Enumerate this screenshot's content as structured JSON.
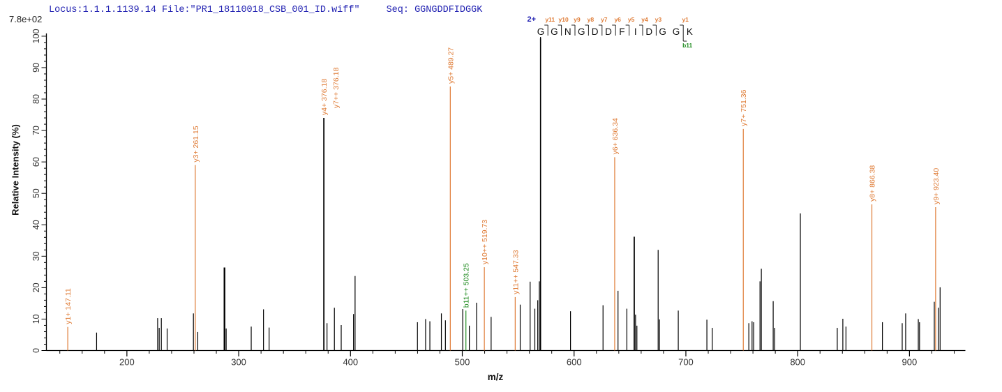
{
  "header": {
    "locus_file": "Locus:1.1.1.1139.14 File:\"PR1_18110018_CSB_001_ID.wiff\"",
    "seq_label": "Seq: GGNGDDFIDGGK"
  },
  "colors": {
    "black": "#000000",
    "orange": "#df7b35",
    "green": "#1f8b1f",
    "blue": "#2222b2",
    "axis": "#000000",
    "tick_label": "#333333",
    "residue": "#111111",
    "mark": "#222222"
  },
  "chart_data": {
    "type": "bar",
    "subtype": "ms2-stick-spectrum",
    "xlabel": "m/z",
    "ylabel": "Relative  Intensity (%)",
    "base_peak_label": "7.8e+02",
    "xlim": [
      128,
      950
    ],
    "ylim": [
      0,
      100
    ],
    "x_major_ticks": [
      200,
      300,
      400,
      500,
      600,
      700,
      800,
      900
    ],
    "x_minor_tick_step": 20,
    "x_minor_tick_range": [
      140,
      940
    ],
    "y_major_tick_step": 10,
    "y_minor_tick_step": 2,
    "sequence_annotation": {
      "charge": "2+",
      "residues": [
        "G",
        "G",
        "N",
        "G",
        "D",
        "D",
        "F",
        "I",
        "D",
        "G",
        "G",
        "K"
      ],
      "y_ion_boundaries": [
        {
          "after": 1,
          "label": "y11"
        },
        {
          "after": 2,
          "label": "y10"
        },
        {
          "after": 3,
          "label": "y9"
        },
        {
          "after": 4,
          "label": "y8"
        },
        {
          "after": 5,
          "label": "y7"
        },
        {
          "after": 6,
          "label": "y6"
        },
        {
          "after": 7,
          "label": "y5"
        },
        {
          "after": 8,
          "label": "y4"
        },
        {
          "after": 9,
          "label": "y3"
        },
        {
          "after": 11,
          "label": "y1"
        }
      ],
      "b_ion_boundaries": [
        {
          "after": 11,
          "label": "b11"
        }
      ],
      "precursor_mz": 570.0
    },
    "peaks": [
      {
        "mz": 147.11,
        "i": 7.5,
        "c": "o",
        "label": "y1+ 147.11"
      },
      {
        "mz": 172.9,
        "i": 5.7
      },
      {
        "mz": 227.5,
        "i": 10.3
      },
      {
        "mz": 228.9,
        "i": 7.2
      },
      {
        "mz": 230.8,
        "i": 10.3
      },
      {
        "mz": 236.0,
        "i": 7.0
      },
      {
        "mz": 259.5,
        "i": 11.8
      },
      {
        "mz": 261.15,
        "i": 59.0,
        "c": "o",
        "label": "y3+ 261.15"
      },
      {
        "mz": 263.4,
        "i": 5.9
      },
      {
        "mz": 287.3,
        "i": 26.4,
        "w": 2.4
      },
      {
        "mz": 288.8,
        "i": 7.0
      },
      {
        "mz": 311.2,
        "i": 7.6
      },
      {
        "mz": 322.2,
        "i": 13.1
      },
      {
        "mz": 327.2,
        "i": 7.3
      },
      {
        "mz": 376.18,
        "i": 74.0,
        "w": 1.8,
        "lc": "o",
        "label": "y4+ 376.18",
        "label2": "y7++ 376.18"
      },
      {
        "mz": 379.0,
        "i": 8.7
      },
      {
        "mz": 385.6,
        "i": 13.6
      },
      {
        "mz": 391.7,
        "i": 8.1
      },
      {
        "mz": 402.7,
        "i": 11.6
      },
      {
        "mz": 404.1,
        "i": 23.7
      },
      {
        "mz": 459.9,
        "i": 9.0
      },
      {
        "mz": 467.2,
        "i": 10.0
      },
      {
        "mz": 471.0,
        "i": 9.3
      },
      {
        "mz": 481.3,
        "i": 11.8
      },
      {
        "mz": 484.9,
        "i": 9.6
      },
      {
        "mz": 489.27,
        "i": 84.0,
        "c": "o",
        "label": "y5+ 489.27"
      },
      {
        "mz": 500.4,
        "i": 13.2
      },
      {
        "mz": 503.25,
        "i": 12.7,
        "c": "g",
        "label": "b11++ 503.25"
      },
      {
        "mz": 506.3,
        "i": 7.9
      },
      {
        "mz": 512.8,
        "i": 15.2
      },
      {
        "mz": 519.73,
        "i": 26.5,
        "c": "o",
        "label": "y10++ 519.73"
      },
      {
        "mz": 525.8,
        "i": 10.7
      },
      {
        "mz": 547.33,
        "i": 17.0,
        "c": "o",
        "label": "y11++ 547.33"
      },
      {
        "mz": 551.8,
        "i": 14.6
      },
      {
        "mz": 560.7,
        "i": 21.9
      },
      {
        "mz": 564.9,
        "i": 13.3
      },
      {
        "mz": 567.5,
        "i": 16.0
      },
      {
        "mz": 568.9,
        "i": 22.0
      },
      {
        "mz": 570.0,
        "i": 99.3,
        "w": 1.6
      },
      {
        "mz": 596.8,
        "i": 12.5
      },
      {
        "mz": 625.9,
        "i": 14.4
      },
      {
        "mz": 636.34,
        "i": 61.5,
        "c": "o",
        "label": "y6+ 636.34"
      },
      {
        "mz": 639.3,
        "i": 19.0
      },
      {
        "mz": 647.2,
        "i": 13.3
      },
      {
        "mz": 653.8,
        "i": 36.2,
        "w": 1.8
      },
      {
        "mz": 655.0,
        "i": 11.4
      },
      {
        "mz": 656.2,
        "i": 7.9
      },
      {
        "mz": 675.2,
        "i": 32.0
      },
      {
        "mz": 676.4,
        "i": 9.9
      },
      {
        "mz": 693.2,
        "i": 12.7
      },
      {
        "mz": 718.8,
        "i": 9.8
      },
      {
        "mz": 723.6,
        "i": 7.2
      },
      {
        "mz": 751.36,
        "i": 70.5,
        "c": "o",
        "label": "y7+ 751.36"
      },
      {
        "mz": 756.3,
        "i": 8.7
      },
      {
        "mz": 759.2,
        "i": 9.3
      },
      {
        "mz": 760.6,
        "i": 9.0
      },
      {
        "mz": 766.3,
        "i": 22.0
      },
      {
        "mz": 767.5,
        "i": 26.0
      },
      {
        "mz": 778.1,
        "i": 15.7
      },
      {
        "mz": 779.4,
        "i": 7.2
      },
      {
        "mz": 802.4,
        "i": 43.6
      },
      {
        "mz": 835.4,
        "i": 7.2
      },
      {
        "mz": 840.4,
        "i": 10.1
      },
      {
        "mz": 843.2,
        "i": 7.6
      },
      {
        "mz": 866.38,
        "i": 46.5,
        "c": "o",
        "label": "y8+ 866.38"
      },
      {
        "mz": 875.8,
        "i": 9.0
      },
      {
        "mz": 893.5,
        "i": 8.7
      },
      {
        "mz": 896.6,
        "i": 11.8
      },
      {
        "mz": 907.9,
        "i": 10.0
      },
      {
        "mz": 909.0,
        "i": 9.0
      },
      {
        "mz": 922.2,
        "i": 15.5
      },
      {
        "mz": 923.4,
        "i": 45.6,
        "c": "o",
        "label": "y9+ 923.40"
      },
      {
        "mz": 925.8,
        "i": 13.6
      },
      {
        "mz": 927.4,
        "i": 20.1
      }
    ]
  }
}
